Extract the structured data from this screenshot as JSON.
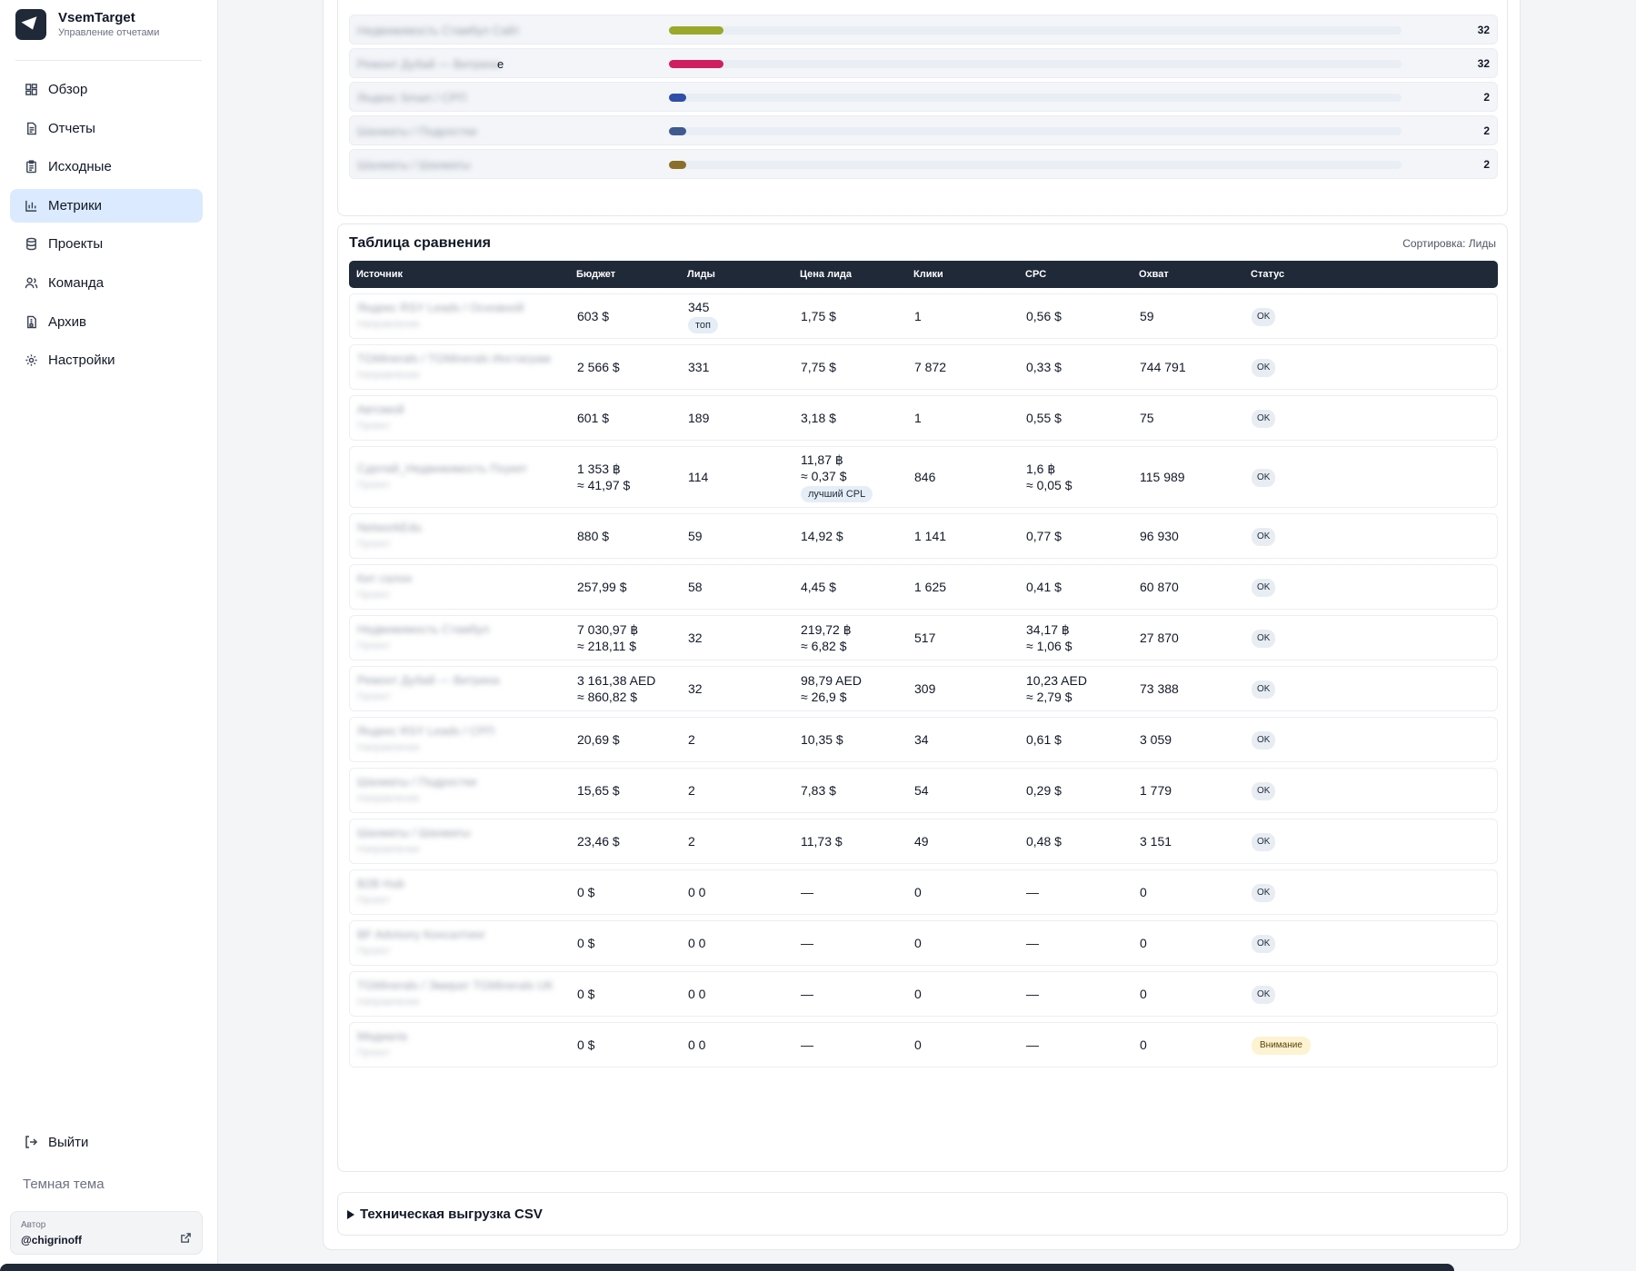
{
  "app": {
    "title": "VsemTarget",
    "subtitle": "Управление отчетами"
  },
  "sidebar": {
    "items": [
      {
        "label": "Обзор",
        "icon": "dashboard-icon",
        "active": false
      },
      {
        "label": "Отчеты",
        "icon": "document-icon",
        "active": false
      },
      {
        "label": "Исходные",
        "icon": "clipboard-icon",
        "active": false
      },
      {
        "label": "Метрики",
        "icon": "bar-chart-icon",
        "active": true
      },
      {
        "label": "Проекты",
        "icon": "database-icon",
        "active": false
      },
      {
        "label": "Команда",
        "icon": "users-icon",
        "active": false
      },
      {
        "label": "Архив",
        "icon": "archive-icon",
        "active": false
      },
      {
        "label": "Настройки",
        "icon": "gear-icon",
        "active": false
      }
    ],
    "logout": "Выйти",
    "theme": "Темная тема",
    "author_label": "Автор",
    "author_name": "@chigrinoff"
  },
  "bars": [
    {
      "label": "Недвижимость Стамбул Сайт",
      "value": "32",
      "fraction": 0.074,
      "color": "#9aa82c"
    },
    {
      "label": "Ремонт Дубай — Витрина",
      "label_tail": "е",
      "value": "32",
      "fraction": 0.074,
      "color": "#cf1f61"
    },
    {
      "label": "Яндекс Smart / СРП",
      "value": "2",
      "fraction": 0.024,
      "color": "#2f4fa8"
    },
    {
      "label": "Шахматы / Подростки",
      "value": "2",
      "fraction": 0.024,
      "color": "#3f5a8e"
    },
    {
      "label": "Шахматы / Шахматы",
      "value": "2",
      "fraction": 0.024,
      "color": "#8a6f2a"
    }
  ],
  "table": {
    "title": "Таблица сравнения",
    "sort_label": "Сортировка: Лиды",
    "headers": [
      "Источник",
      "Бюджет",
      "Лиды",
      "Цена лида",
      "Клики",
      "CPC",
      "Охват",
      "Статус"
    ],
    "rows": [
      {
        "source": "Яндекс RSY Leads / Основной",
        "sub": "Направление",
        "budget": [
          "603 $"
        ],
        "leads": [
          "345"
        ],
        "leads_tag": "топ",
        "cpl": [
          "1,75 $"
        ],
        "cpl_tag": "",
        "clicks": "1",
        "cpc": [
          "0,56 $"
        ],
        "reach": "59",
        "status": "OK",
        "warn": false,
        "h": 50
      },
      {
        "source": "TGMinerals / TGMinerals Инстаграм",
        "sub": "Направление",
        "budget": [
          "2 566 $"
        ],
        "leads": [
          "331"
        ],
        "leads_tag": "",
        "cpl": [
          "7,75 $"
        ],
        "cpl_tag": "",
        "clicks": "7 872",
        "cpc": [
          "0,33 $"
        ],
        "reach": "744 791",
        "status": "OK",
        "warn": false,
        "h": 50
      },
      {
        "source": "Автомой",
        "sub": "Проект",
        "budget": [
          "601 $"
        ],
        "leads": [
          "189"
        ],
        "leads_tag": "",
        "cpl": [
          "3,18 $"
        ],
        "cpl_tag": "",
        "clicks": "1",
        "cpc": [
          "0,55 $"
        ],
        "reach": "75",
        "status": "OK",
        "warn": false,
        "h": 50
      },
      {
        "source": "Сделай_Недвижимость Пхукет",
        "sub": "Проект",
        "budget": [
          "1 353 ฿",
          "≈ 41,97 $"
        ],
        "leads": [
          "114"
        ],
        "leads_tag": "",
        "cpl": [
          "11,87 ฿",
          "≈ 0,37 $"
        ],
        "cpl_tag": "лучший CPL",
        "clicks": "846",
        "cpc": [
          "1,6 ฿",
          "≈ 0,05 $"
        ],
        "reach": "115 989",
        "status": "OK",
        "warn": false,
        "h": 68
      },
      {
        "source": "NetworkEdu",
        "sub": "Проект",
        "budget": [
          "880 $"
        ],
        "leads": [
          "59"
        ],
        "leads_tag": "",
        "cpl": [
          "14,92 $"
        ],
        "cpl_tag": "",
        "clicks": "1 141",
        "cpc": [
          "0,77 $"
        ],
        "reach": "96 930",
        "status": "OK",
        "warn": false,
        "h": 50
      },
      {
        "source": "Кит салон",
        "sub": "Проект",
        "budget": [
          "257,99 $"
        ],
        "leads": [
          "58"
        ],
        "leads_tag": "",
        "cpl": [
          "4,45 $"
        ],
        "cpl_tag": "",
        "clicks": "1 625",
        "cpc": [
          "0,41 $"
        ],
        "reach": "60 870",
        "status": "OK",
        "warn": false,
        "h": 50
      },
      {
        "source": "Недвижимость Стамбул",
        "sub": "Проект",
        "budget": [
          "7 030,97 ฿",
          "≈ 218,11 $"
        ],
        "leads": [
          "32"
        ],
        "leads_tag": "",
        "cpl": [
          "219,72 ฿",
          "≈ 6,82 $"
        ],
        "cpl_tag": "",
        "clicks": "517",
        "cpc": [
          "34,17 ฿",
          "≈ 1,06 $"
        ],
        "reach": "27 870",
        "status": "OK",
        "warn": false,
        "h": 50
      },
      {
        "source": "Ремонт Дубай — Витрина",
        "sub": "Проект",
        "budget": [
          "3 161,38 AED",
          "≈ 860,82 $"
        ],
        "leads": [
          "32"
        ],
        "leads_tag": "",
        "cpl": [
          "98,79 AED",
          "≈ 26,9 $"
        ],
        "cpl_tag": "",
        "clicks": "309",
        "cpc": [
          "10,23 AED",
          "≈ 2,79 $"
        ],
        "reach": "73 388",
        "status": "OK",
        "warn": false,
        "h": 50
      },
      {
        "source": "Яндекс RSY Leads / СРП",
        "sub": "Направление",
        "budget": [
          "20,69 $"
        ],
        "leads": [
          "2"
        ],
        "leads_tag": "",
        "cpl": [
          "10,35 $"
        ],
        "cpl_tag": "",
        "clicks": "34",
        "cpc": [
          "0,61 $"
        ],
        "reach": "3 059",
        "status": "OK",
        "warn": false,
        "h": 50
      },
      {
        "source": "Шахматы / Подростки",
        "sub": "Направление",
        "budget": [
          "15,65 $"
        ],
        "leads": [
          "2"
        ],
        "leads_tag": "",
        "cpl": [
          "7,83 $"
        ],
        "cpl_tag": "",
        "clicks": "54",
        "cpc": [
          "0,29 $"
        ],
        "reach": "1 779",
        "status": "OK",
        "warn": false,
        "h": 50
      },
      {
        "source": "Шахматы / Шахматы",
        "sub": "Направление",
        "budget": [
          "23,46 $"
        ],
        "leads": [
          "2"
        ],
        "leads_tag": "",
        "cpl": [
          "11,73 $"
        ],
        "cpl_tag": "",
        "clicks": "49",
        "cpc": [
          "0,48 $"
        ],
        "reach": "3 151",
        "status": "OK",
        "warn": false,
        "h": 50
      },
      {
        "source": "B2B Hub",
        "sub": "Проект",
        "budget": [
          "0 $"
        ],
        "leads": [
          "0 0"
        ],
        "leads_tag": "",
        "cpl": [
          "—"
        ],
        "cpl_tag": "",
        "clicks": "0",
        "cpc": [
          "—"
        ],
        "reach": "0",
        "status": "OK",
        "warn": false,
        "h": 50
      },
      {
        "source": "BF Advisory Консалтинг",
        "sub": "Проект",
        "budget": [
          "0 $"
        ],
        "leads": [
          "0 0"
        ],
        "leads_tag": "",
        "cpl": [
          "—"
        ],
        "cpl_tag": "",
        "clicks": "0",
        "cpc": [
          "—"
        ],
        "reach": "0",
        "status": "OK",
        "warn": false,
        "h": 50
      },
      {
        "source": "TGMinerals / Эмират TGMinerals UK",
        "sub": "Направление",
        "budget": [
          "0 $"
        ],
        "leads": [
          "0 0"
        ],
        "leads_tag": "",
        "cpl": [
          "—"
        ],
        "cpl_tag": "",
        "clicks": "0",
        "cpc": [
          "—"
        ],
        "reach": "0",
        "status": "OK",
        "warn": false,
        "h": 50
      },
      {
        "source": "Медиала",
        "sub": "Проект",
        "budget": [
          "0 $"
        ],
        "leads": [
          "0 0"
        ],
        "leads_tag": "",
        "cpl": [
          "—"
        ],
        "cpl_tag": "",
        "clicks": "0",
        "cpc": [
          "—"
        ],
        "reach": "0",
        "status": "Внимание",
        "warn": true,
        "h": 50
      }
    ]
  },
  "csv": {
    "label": "Техническая выгрузка CSV"
  }
}
